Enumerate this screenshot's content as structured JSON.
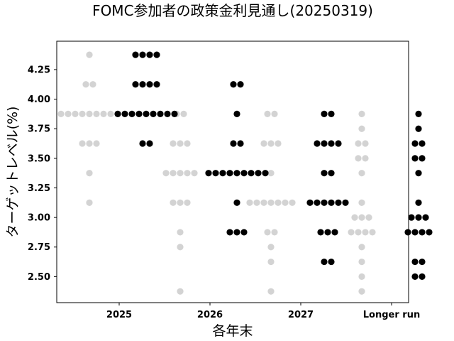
{
  "chart_data": {
    "type": "scatter",
    "title": "FOMC参加者の政策金利見通し(20250319)",
    "xlabel": "各年末",
    "ylabel": "ターゲットレベル(%)",
    "categories": [
      "2025",
      "2026",
      "2027",
      "Longer run"
    ],
    "yticks": [
      "2.50",
      "2.75",
      "3.00",
      "3.25",
      "3.50",
      "3.75",
      "4.00",
      "4.25"
    ],
    "ylim": [
      2.28,
      4.49
    ],
    "grid": false,
    "legend": "none",
    "colors": {
      "previous": "#d3d3d3",
      "current": "#000000"
    },
    "series": [
      {
        "color": "#d3d3d3",
        "points": [
          {
            "x": "2025",
            "y": 4.375,
            "count": 1
          },
          {
            "x": "2025",
            "y": 4.125,
            "count": 2
          },
          {
            "x": "2025",
            "y": 3.875,
            "count": 9
          },
          {
            "x": "2025",
            "y": 3.625,
            "count": 3
          },
          {
            "x": "2025",
            "y": 3.375,
            "count": 1
          },
          {
            "x": "2025",
            "y": 3.125,
            "count": 1
          },
          {
            "x": "2026",
            "y": 3.875,
            "count": 2
          },
          {
            "x": "2026",
            "y": 3.625,
            "count": 3
          },
          {
            "x": "2026",
            "y": 3.375,
            "count": 5
          },
          {
            "x": "2026",
            "y": 3.125,
            "count": 3
          },
          {
            "x": "2026",
            "y": 2.875,
            "count": 1
          },
          {
            "x": "2026",
            "y": 2.75,
            "count": 1
          },
          {
            "x": "2026",
            "y": 2.375,
            "count": 1
          },
          {
            "x": "2027",
            "y": 3.875,
            "count": 2
          },
          {
            "x": "2027",
            "y": 3.625,
            "count": 3
          },
          {
            "x": "2027",
            "y": 3.375,
            "count": 1
          },
          {
            "x": "2027",
            "y": 3.125,
            "count": 7
          },
          {
            "x": "2027",
            "y": 2.875,
            "count": 2
          },
          {
            "x": "2027",
            "y": 2.75,
            "count": 1
          },
          {
            "x": "2027",
            "y": 2.625,
            "count": 1
          },
          {
            "x": "2027",
            "y": 2.375,
            "count": 1
          },
          {
            "x": "Longer run",
            "y": 3.875,
            "count": 1
          },
          {
            "x": "Longer run",
            "y": 3.75,
            "count": 1
          },
          {
            "x": "Longer run",
            "y": 3.625,
            "count": 2
          },
          {
            "x": "Longer run",
            "y": 3.5,
            "count": 2
          },
          {
            "x": "Longer run",
            "y": 3.375,
            "count": 1
          },
          {
            "x": "Longer run",
            "y": 3.125,
            "count": 1
          },
          {
            "x": "Longer run",
            "y": 3.0,
            "count": 3
          },
          {
            "x": "Longer run",
            "y": 2.875,
            "count": 4
          },
          {
            "x": "Longer run",
            "y": 2.75,
            "count": 1
          },
          {
            "x": "Longer run",
            "y": 2.625,
            "count": 1
          },
          {
            "x": "Longer run",
            "y": 2.5,
            "count": 1
          },
          {
            "x": "Longer run",
            "y": 2.375,
            "count": 1
          }
        ]
      },
      {
        "color": "#000000",
        "points": [
          {
            "x": "2025",
            "y": 4.375,
            "count": 4
          },
          {
            "x": "2025",
            "y": 4.125,
            "count": 4
          },
          {
            "x": "2025",
            "y": 3.875,
            "count": 9
          },
          {
            "x": "2025",
            "y": 3.625,
            "count": 2
          },
          {
            "x": "2026",
            "y": 4.125,
            "count": 2
          },
          {
            "x": "2026",
            "y": 3.875,
            "count": 1
          },
          {
            "x": "2026",
            "y": 3.625,
            "count": 2
          },
          {
            "x": "2026",
            "y": 3.375,
            "count": 9
          },
          {
            "x": "2026",
            "y": 3.125,
            "count": 1
          },
          {
            "x": "2026",
            "y": 2.875,
            "count": 3
          },
          {
            "x": "2027",
            "y": 3.875,
            "count": 2
          },
          {
            "x": "2027",
            "y": 3.625,
            "count": 4
          },
          {
            "x": "2027",
            "y": 3.375,
            "count": 2
          },
          {
            "x": "2027",
            "y": 3.125,
            "count": 6
          },
          {
            "x": "2027",
            "y": 2.875,
            "count": 3
          },
          {
            "x": "2027",
            "y": 2.625,
            "count": 2
          },
          {
            "x": "Longer run",
            "y": 3.875,
            "count": 1
          },
          {
            "x": "Longer run",
            "y": 3.75,
            "count": 1
          },
          {
            "x": "Longer run",
            "y": 3.625,
            "count": 2
          },
          {
            "x": "Longer run",
            "y": 3.5,
            "count": 2
          },
          {
            "x": "Longer run",
            "y": 3.375,
            "count": 1
          },
          {
            "x": "Longer run",
            "y": 3.125,
            "count": 1
          },
          {
            "x": "Longer run",
            "y": 3.0,
            "count": 3
          },
          {
            "x": "Longer run",
            "y": 2.875,
            "count": 4
          },
          {
            "x": "Longer run",
            "y": 2.625,
            "count": 2
          },
          {
            "x": "Longer run",
            "y": 2.5,
            "count": 2
          }
        ]
      }
    ]
  }
}
